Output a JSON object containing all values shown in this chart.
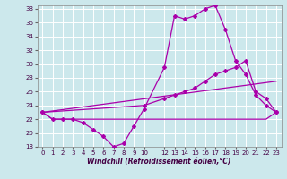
{
  "xlabel": "Windchill (Refroidissement éolien,°C)",
  "background_color": "#cce8ec",
  "grid_color": "#ffffff",
  "line_color": "#aa00aa",
  "xlim": [
    -0.5,
    23.5
  ],
  "ylim": [
    18,
    38.5
  ],
  "xticks": [
    0,
    1,
    2,
    3,
    4,
    5,
    6,
    7,
    8,
    9,
    10,
    12,
    13,
    14,
    15,
    16,
    17,
    18,
    19,
    20,
    21,
    22,
    23
  ],
  "yticks": [
    18,
    20,
    22,
    24,
    26,
    28,
    30,
    32,
    34,
    36,
    38
  ],
  "series": [
    {
      "x": [
        0,
        1,
        2,
        3,
        4,
        5,
        6,
        7,
        8,
        9,
        10,
        12,
        13,
        14,
        15,
        16,
        17,
        18,
        19,
        20,
        21,
        22,
        23
      ],
      "y": [
        23,
        22,
        22,
        22,
        21.5,
        20.5,
        19.5,
        18,
        18.5,
        21,
        23.5,
        29.5,
        37,
        36.5,
        37,
        38,
        38.5,
        35,
        30.5,
        28.5,
        25.5,
        24,
        23
      ],
      "markers": true
    },
    {
      "x": [
        0,
        1,
        2,
        3,
        4,
        5,
        6,
        7,
        8,
        9,
        10,
        12,
        13,
        14,
        15,
        16,
        17,
        18,
        19,
        20,
        21,
        22,
        23
      ],
      "y": [
        23,
        22,
        22,
        22,
        22,
        22,
        22,
        22,
        22,
        22,
        22,
        22,
        22,
        22,
        22,
        22,
        22,
        22,
        22,
        22,
        22,
        22,
        23
      ],
      "markers": false
    },
    {
      "x": [
        0,
        23
      ],
      "y": [
        23,
        27.5
      ],
      "markers": false
    },
    {
      "x": [
        0,
        10,
        12,
        13,
        14,
        15,
        16,
        17,
        18,
        19,
        20,
        21,
        22,
        23
      ],
      "y": [
        23,
        24,
        25,
        25.5,
        26,
        26.5,
        27.5,
        28.5,
        29,
        29.5,
        30.5,
        26,
        25,
        23
      ],
      "markers": true
    }
  ]
}
